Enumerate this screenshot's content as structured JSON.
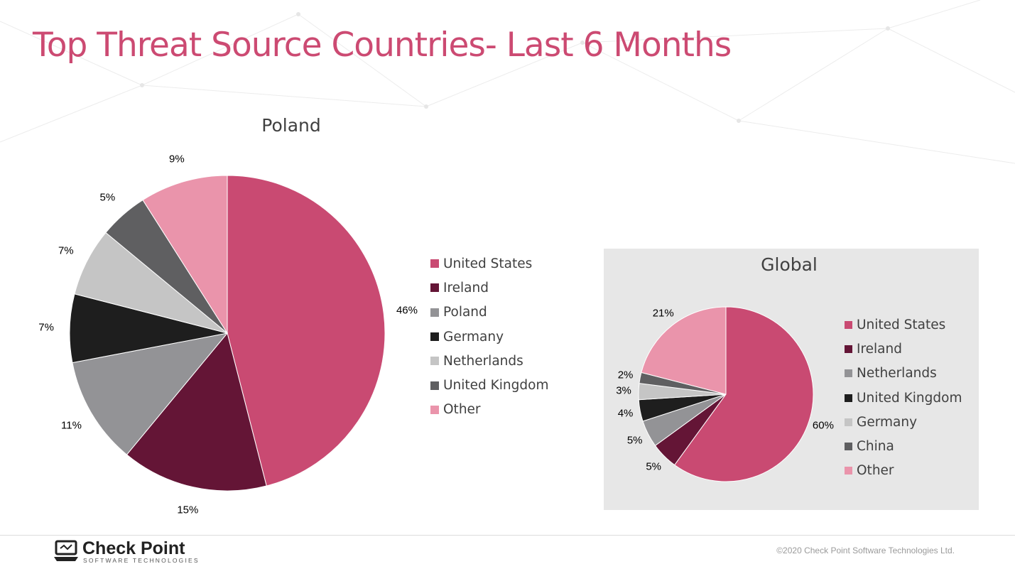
{
  "slide": {
    "title": "Top Threat Source Countries- Last 6 Months"
  },
  "chart_data": [
    {
      "type": "pie",
      "title": "Poland",
      "categories": [
        "United States",
        "Ireland",
        "Poland",
        "Germany",
        "Netherlands",
        "United Kingdom",
        "Other"
      ],
      "values": [
        46,
        15,
        11,
        7,
        7,
        5,
        9
      ],
      "labels": [
        "46%",
        "15%",
        "11%",
        "7%",
        "7%",
        "5%",
        "9%"
      ],
      "colors": [
        "#c94a72",
        "#641536",
        "#939396",
        "#1e1e1e",
        "#c5c5c5",
        "#5f5f61",
        "#ea94ab"
      ],
      "legend_position": "right"
    },
    {
      "type": "pie",
      "title": "Global",
      "categories": [
        "United States",
        "Ireland",
        "Netherlands",
        "United Kingdom",
        "Germany",
        "China",
        "Other"
      ],
      "values": [
        60,
        5,
        5,
        4,
        3,
        2,
        21
      ],
      "labels": [
        "60%",
        "5%",
        "5%",
        "4%",
        "3%",
        "2%",
        "21%"
      ],
      "colors": [
        "#c94a72",
        "#641536",
        "#939396",
        "#1e1e1e",
        "#c5c5c5",
        "#5f5f61",
        "#ea94ab"
      ],
      "legend_position": "right"
    }
  ],
  "footer": {
    "logo_name": "Check Point",
    "logo_subtitle": "SOFTWARE TECHNOLOGIES",
    "logo_icon": "check-point-logo-icon",
    "copyright": "©2020 Check Point Software Technologies Ltd."
  }
}
